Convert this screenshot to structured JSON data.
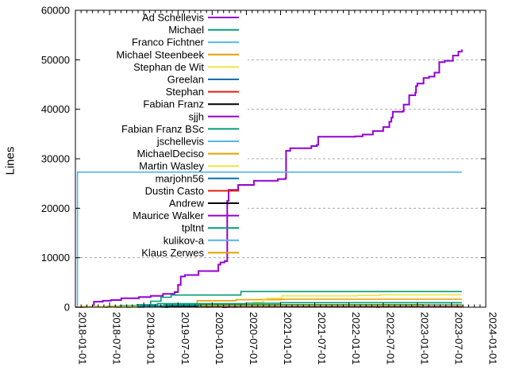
{
  "figure": {
    "background": "#ffffff",
    "border_color": "#000000",
    "grid_color": "#a8a8a8",
    "legend_box_color": "#ffffff"
  },
  "chart_data": {
    "type": "line",
    "title": "",
    "ylabel": "Lines",
    "xlabel": "",
    "grid": "y-dashed",
    "legend_position": "inside-top-left",
    "x_axis": {
      "min": 2018.0,
      "max": 2024.0,
      "major_tick_interval_months": 6,
      "minor_tick_interval_months": 1,
      "tick_labels": [
        "2018-01-01",
        "2018-07-01",
        "2019-01-01",
        "2019-07-01",
        "2020-01-01",
        "2020-07-01",
        "2021-01-01",
        "2021-07-01",
        "2022-01-01",
        "2022-07-01",
        "2023-01-01",
        "2023-07-01",
        "2024-01-01"
      ]
    },
    "y_axis": {
      "min": 0,
      "max": 60000,
      "tick_interval": 10000,
      "tick_labels": [
        "0",
        "10000",
        "20000",
        "30000",
        "40000",
        "50000",
        "60000"
      ],
      "gridline_values": [
        10000,
        20000,
        30000,
        40000,
        50000
      ]
    },
    "series": [
      {
        "name": "Ad Schellevis",
        "color": "#9400d3",
        "width": 2,
        "points": [
          [
            2018.0,
            0
          ],
          [
            2018.1,
            150
          ],
          [
            2018.27,
            1100
          ],
          [
            2018.4,
            1300
          ],
          [
            2018.52,
            1450
          ],
          [
            2018.67,
            1800
          ],
          [
            2018.93,
            2050
          ],
          [
            2019.1,
            2300
          ],
          [
            2019.28,
            2700
          ],
          [
            2019.45,
            3050
          ],
          [
            2019.5,
            4500
          ],
          [
            2019.54,
            6200
          ],
          [
            2019.6,
            6500
          ],
          [
            2019.8,
            7300
          ],
          [
            2020.09,
            8600
          ],
          [
            2020.12,
            9050
          ],
          [
            2020.18,
            9300
          ],
          [
            2020.22,
            21500
          ],
          [
            2020.24,
            23700
          ],
          [
            2020.38,
            24700
          ],
          [
            2020.61,
            25560
          ],
          [
            2020.96,
            25900
          ],
          [
            2021.07,
            26050
          ],
          [
            2021.08,
            31600
          ],
          [
            2021.14,
            32130
          ],
          [
            2021.45,
            32560
          ],
          [
            2021.53,
            32800
          ],
          [
            2021.55,
            34440
          ],
          [
            2022.09,
            34540
          ],
          [
            2022.2,
            34900
          ],
          [
            2022.35,
            35600
          ],
          [
            2022.5,
            36400
          ],
          [
            2022.59,
            37480
          ],
          [
            2022.62,
            38300
          ],
          [
            2022.64,
            39500
          ],
          [
            2022.79,
            39620
          ],
          [
            2022.8,
            40960
          ],
          [
            2022.88,
            42830
          ],
          [
            2022.97,
            43360
          ],
          [
            2022.98,
            44700
          ],
          [
            2023.0,
            45200
          ],
          [
            2023.09,
            46310
          ],
          [
            2023.17,
            46600
          ],
          [
            2023.25,
            47400
          ],
          [
            2023.32,
            49520
          ],
          [
            2023.4,
            49800
          ],
          [
            2023.52,
            50850
          ],
          [
            2023.6,
            51650
          ],
          [
            2023.65,
            52080
          ]
        ]
      },
      {
        "name": "Michael",
        "color": "#009e73",
        "width": 1.6,
        "points": [
          [
            2018.95,
            0
          ],
          [
            2019.0,
            400
          ],
          [
            2019.1,
            1200
          ],
          [
            2019.25,
            2000
          ],
          [
            2019.4,
            2450
          ],
          [
            2020.42,
            3160
          ],
          [
            2023.65,
            3160
          ]
        ]
      },
      {
        "name": "Franco Fichtner",
        "color": "#56b4e9",
        "width": 1.6,
        "points": [
          [
            2018.1,
            0
          ],
          [
            2018.15,
            150
          ],
          [
            2019.0,
            200
          ],
          [
            2020.0,
            230
          ],
          [
            2021.5,
            250
          ],
          [
            2023.65,
            260
          ]
        ]
      },
      {
        "name": "Michael Steenbeek",
        "color": "#e69f00",
        "width": 1.6,
        "points": [
          [
            2019.75,
            0
          ],
          [
            2019.78,
            1300
          ],
          [
            2020.3,
            1310
          ],
          [
            2020.35,
            1500
          ],
          [
            2021.0,
            1550
          ],
          [
            2021.05,
            1600
          ],
          [
            2023.65,
            1600
          ]
        ]
      },
      {
        "name": "Stephan de Wit",
        "color": "#f0e442",
        "width": 1.6,
        "points": [
          [
            2018.0,
            0
          ],
          [
            2018.04,
            120
          ],
          [
            2020.55,
            150
          ],
          [
            2020.6,
            1000
          ],
          [
            2020.75,
            1650
          ],
          [
            2020.8,
            1810
          ],
          [
            2021.02,
            2300
          ],
          [
            2022.12,
            2380
          ],
          [
            2022.45,
            2510
          ],
          [
            2023.65,
            2510
          ]
        ]
      },
      {
        "name": "Greelan",
        "color": "#0072b2",
        "width": 1.6,
        "points": [
          [
            2020.3,
            0
          ],
          [
            2020.35,
            200
          ],
          [
            2021.5,
            250
          ],
          [
            2023.65,
            300
          ]
        ]
      },
      {
        "name": "Stephan",
        "color": "#e51e10",
        "width": 1.6,
        "points": [
          [
            2018.75,
            0
          ],
          [
            2018.8,
            100
          ],
          [
            2021.0,
            130
          ],
          [
            2023.65,
            150
          ]
        ]
      },
      {
        "name": "Fabian Franz",
        "color": "#000000",
        "width": 1.6,
        "points": [
          [
            2018.44,
            0
          ],
          [
            2018.46,
            200
          ],
          [
            2019.5,
            250
          ],
          [
            2020.5,
            300
          ],
          [
            2023.65,
            320
          ]
        ]
      },
      {
        "name": "sjjh",
        "color": "#9400d3",
        "width": 1.6,
        "points": [
          [
            2020.2,
            0
          ],
          [
            2020.25,
            150
          ],
          [
            2022.0,
            180
          ],
          [
            2023.65,
            200
          ]
        ]
      },
      {
        "name": "Fabian Franz BSc",
        "color": "#009e73",
        "width": 1.6,
        "points": [
          [
            2018.6,
            0
          ],
          [
            2018.65,
            300
          ],
          [
            2018.9,
            500
          ],
          [
            2019.2,
            700
          ],
          [
            2020.5,
            800
          ],
          [
            2021.0,
            910
          ],
          [
            2023.65,
            910
          ]
        ]
      },
      {
        "name": "jschellevis",
        "color": "#56b4e9",
        "width": 1.6,
        "points": [
          [
            2018.0,
            0
          ],
          [
            2018.03,
            27300
          ],
          [
            2023.65,
            27300
          ]
        ]
      },
      {
        "name": "MichaelDeciso",
        "color": "#e69f00",
        "width": 1.6,
        "points": [
          [
            2019.9,
            0
          ],
          [
            2019.95,
            350
          ],
          [
            2021.0,
            380
          ],
          [
            2023.65,
            400
          ]
        ]
      },
      {
        "name": "Martin Wasley",
        "color": "#f0e442",
        "width": 1.6,
        "points": [
          [
            2018.05,
            0
          ],
          [
            2018.1,
            150
          ],
          [
            2019.0,
            220
          ],
          [
            2021.0,
            300
          ],
          [
            2023.65,
            350
          ]
        ]
      },
      {
        "name": "marjohn56",
        "color": "#0072b2",
        "width": 1.6,
        "points": [
          [
            2018.9,
            0
          ],
          [
            2018.95,
            250
          ],
          [
            2020.0,
            350
          ],
          [
            2021.0,
            420
          ],
          [
            2023.65,
            450
          ]
        ]
      },
      {
        "name": "Dustin Casto",
        "color": "#e51e10",
        "width": 1.6,
        "points": [
          [
            2022.4,
            0
          ],
          [
            2022.45,
            120
          ],
          [
            2023.65,
            150
          ]
        ]
      },
      {
        "name": "Andrew",
        "color": "#000000",
        "width": 1.6,
        "points": [
          [
            2019.3,
            0
          ],
          [
            2019.35,
            80
          ],
          [
            2023.65,
            100
          ]
        ]
      },
      {
        "name": "Maurice Walker",
        "color": "#9400d3",
        "width": 2,
        "points": [
          [
            2020.15,
            0
          ],
          [
            2020.2,
            250
          ],
          [
            2023.65,
            260
          ]
        ]
      },
      {
        "name": "tpltnt",
        "color": "#009e73",
        "width": 1.6,
        "points": [
          [
            2019.25,
            0
          ],
          [
            2019.3,
            450
          ],
          [
            2019.5,
            500
          ],
          [
            2023.65,
            520
          ]
        ]
      },
      {
        "name": "kulikov-a",
        "color": "#56b4e9",
        "width": 1.6,
        "points": [
          [
            2023.05,
            0
          ],
          [
            2023.1,
            530
          ],
          [
            2023.65,
            530
          ]
        ]
      },
      {
        "name": "Klaus Zerwes",
        "color": "#e69f00",
        "width": 1.6,
        "points": [
          [
            2019.78,
            0
          ],
          [
            2019.82,
            280
          ],
          [
            2021.0,
            290
          ],
          [
            2023.65,
            300
          ]
        ]
      }
    ]
  }
}
